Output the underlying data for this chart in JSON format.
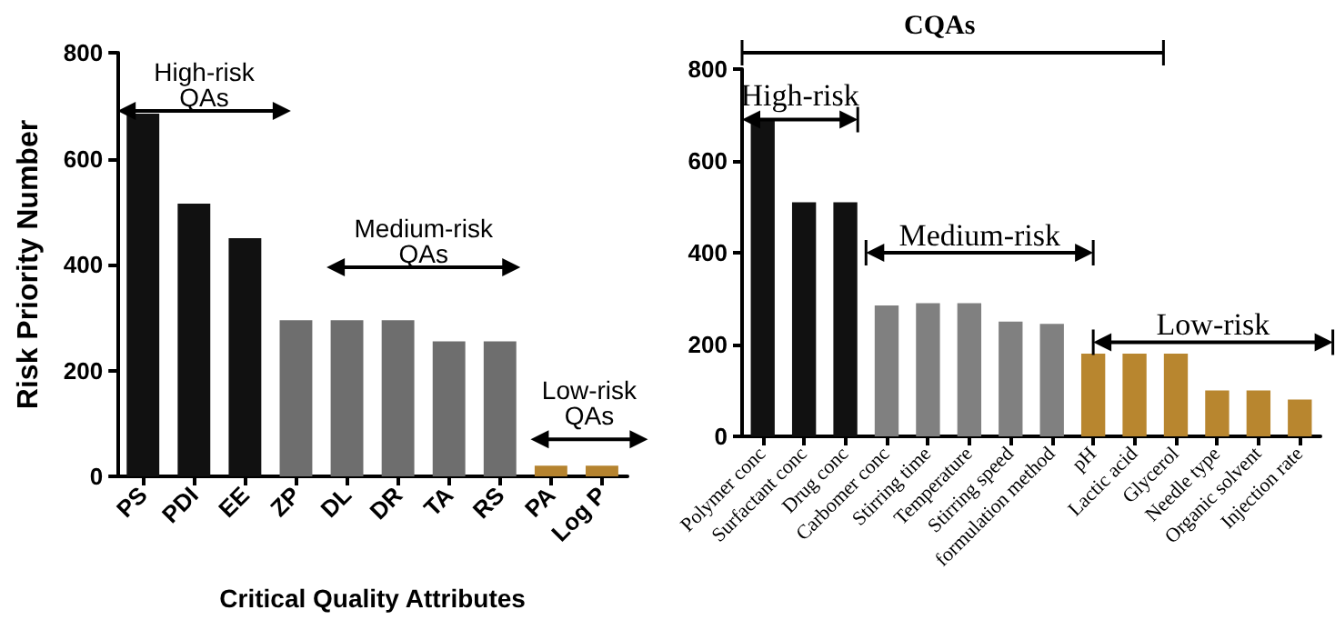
{
  "chart_data": [
    {
      "type": "bar",
      "xlabel": "Critical Quality Attributes",
      "ylabel": "Risk Priority Number",
      "categories": [
        "PS",
        "PDI",
        "EE",
        "ZP",
        "DL",
        "DR",
        "TA",
        "RS",
        "PA",
        "Log P"
      ],
      "values": [
        685,
        515,
        450,
        295,
        295,
        295,
        255,
        255,
        20,
        20
      ],
      "colors": [
        "#111111",
        "#111111",
        "#111111",
        "#6e6e6e",
        "#6e6e6e",
        "#6e6e6e",
        "#6e6e6e",
        "#6e6e6e",
        "#b5832f",
        "#b5832f"
      ],
      "ylim": [
        0,
        800
      ],
      "yticks": [
        0,
        200,
        400,
        600,
        800
      ],
      "annotations": [
        "High-risk\nQAs",
        "Medium-risk\nQAs",
        "Low-risk\nQAs"
      ]
    },
    {
      "type": "bar",
      "title": "CQAs",
      "categories": [
        "Polymer conc",
        "Surfactant conc",
        "Drug conc",
        "Carbomer conc",
        "Stirring time",
        "Temperature",
        "Stirring speed",
        "formulation method",
        "pH",
        "Lactic acid",
        "Glycerol",
        "Needle type",
        "Organic solvent",
        "Injection rate"
      ],
      "values": [
        690,
        510,
        510,
        285,
        290,
        290,
        250,
        245,
        180,
        180,
        180,
        100,
        100,
        80
      ],
      "colors": [
        "#111111",
        "#111111",
        "#111111",
        "#808080",
        "#808080",
        "#808080",
        "#808080",
        "#808080",
        "#b8862f",
        "#b8862f",
        "#b8862f",
        "#b8862f",
        "#b8862f",
        "#b8862f"
      ],
      "ylim": [
        0,
        800
      ],
      "yticks": [
        0,
        200,
        400,
        600,
        800
      ],
      "annotations": [
        "High-risk",
        "Medium-risk",
        "Low-risk"
      ]
    }
  ]
}
